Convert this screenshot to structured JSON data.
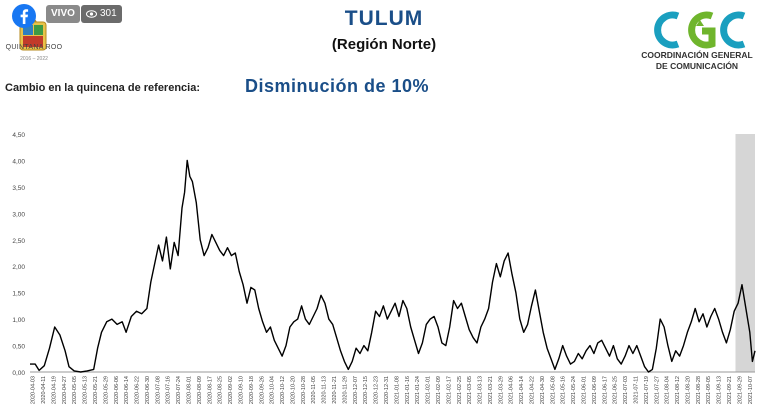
{
  "stream": {
    "live_label": "VIVO",
    "viewer_count": "301"
  },
  "header": {
    "logo_text": "QUINTANA ROO",
    "logo_years": "2016 – 2022",
    "title": "TULUM",
    "subtitle": "(Región Norte)",
    "org_line1": "COORDINACIÓN GENERAL",
    "org_line2": "DE COMUNICACIÓN"
  },
  "summary": {
    "label": "Cambio en la quincena de referencia:",
    "value": "Disminución de 10%"
  },
  "colors": {
    "title_blue": "#1a4e88",
    "line": "#000000",
    "highlight_band": "#d6d6d6",
    "cgc_green": "#6fb52c",
    "cgc_teal": "#1a9fbf",
    "facebook_blue": "#1877f2"
  },
  "chart_data": {
    "type": "line",
    "title": "",
    "xlabel": "",
    "ylabel": "",
    "ylim": [
      0,
      4.5
    ],
    "yticks": [
      "0,00",
      "0,50",
      "1,00",
      "1,50",
      "2,00",
      "2,50",
      "3,00",
      "3,50",
      "4,00",
      "4,50"
    ],
    "ytick_values": [
      0,
      0.5,
      1,
      1.5,
      2,
      2.5,
      3,
      3.5,
      4,
      4.5
    ],
    "grid": false,
    "x_start": "2020-04-01",
    "x_end": "2021-10-11",
    "highlight_range": [
      "2021-09-26",
      "2021-10-11"
    ],
    "xtick_labels": [
      "2020-04-03",
      "2020-04-11",
      "2020-04-19",
      "2020-04-27",
      "2020-05-05",
      "2020-05-13",
      "2020-05-21",
      "2020-05-29",
      "2020-06-06",
      "2020-06-14",
      "2020-06-22",
      "2020-06-30",
      "2020-07-08",
      "2020-07-16",
      "2020-07-24",
      "2020-08-01",
      "2020-08-09",
      "2020-08-17",
      "2020-08-25",
      "2020-09-02",
      "2020-09-10",
      "2020-09-18",
      "2020-09-26",
      "2020-10-04",
      "2020-10-12",
      "2020-10-20",
      "2020-10-28",
      "2020-11-05",
      "2020-11-13",
      "2020-11-21",
      "2020-11-29",
      "2020-12-07",
      "2020-12-15",
      "2020-12-23",
      "2020-12-31",
      "2021-01-08",
      "2021-01-16",
      "2021-01-24",
      "2021-02-01",
      "2021-02-09",
      "2021-02-17",
      "2021-02-25",
      "2021-03-05",
      "2021-03-13",
      "2021-03-21",
      "2021-03-29",
      "2021-04-06",
      "2021-04-14",
      "2021-04-22",
      "2021-04-30",
      "2021-05-08",
      "2021-05-16",
      "2021-05-24",
      "2021-06-01",
      "2021-06-09",
      "2021-06-17",
      "2021-06-25",
      "2021-07-03",
      "2021-07-11",
      "2021-07-19",
      "2021-07-27",
      "2021-08-04",
      "2021-08-12",
      "2021-08-20",
      "2021-08-28",
      "2021-09-05",
      "2021-09-13",
      "2021-09-21",
      "2021-09-29",
      "2021-10-07"
    ],
    "series": [
      {
        "values": [
          [
            "2020-04-01",
            0.15
          ],
          [
            "2020-04-05",
            0.15
          ],
          [
            "2020-04-08",
            0.03
          ],
          [
            "2020-04-12",
            0.12
          ],
          [
            "2020-04-16",
            0.45
          ],
          [
            "2020-04-20",
            0.85
          ],
          [
            "2020-04-24",
            0.7
          ],
          [
            "2020-04-28",
            0.4
          ],
          [
            "2020-05-01",
            0.1
          ],
          [
            "2020-05-05",
            0.02
          ],
          [
            "2020-05-10",
            0.0
          ],
          [
            "2020-05-15",
            0.02
          ],
          [
            "2020-05-20",
            0.05
          ],
          [
            "2020-05-23",
            0.45
          ],
          [
            "2020-05-26",
            0.75
          ],
          [
            "2020-05-30",
            0.95
          ],
          [
            "2020-06-03",
            1.0
          ],
          [
            "2020-06-07",
            0.9
          ],
          [
            "2020-06-11",
            0.95
          ],
          [
            "2020-06-14",
            0.75
          ],
          [
            "2020-06-18",
            1.05
          ],
          [
            "2020-06-22",
            1.15
          ],
          [
            "2020-06-26",
            1.1
          ],
          [
            "2020-06-30",
            1.2
          ],
          [
            "2020-07-03",
            1.7
          ],
          [
            "2020-07-06",
            2.05
          ],
          [
            "2020-07-09",
            2.4
          ],
          [
            "2020-07-12",
            2.1
          ],
          [
            "2020-07-15",
            2.55
          ],
          [
            "2020-07-18",
            1.95
          ],
          [
            "2020-07-21",
            2.45
          ],
          [
            "2020-07-24",
            2.2
          ],
          [
            "2020-07-27",
            3.1
          ],
          [
            "2020-07-29",
            3.4
          ],
          [
            "2020-07-31",
            4.0
          ],
          [
            "2020-08-02",
            3.7
          ],
          [
            "2020-08-04",
            3.6
          ],
          [
            "2020-08-07",
            3.2
          ],
          [
            "2020-08-10",
            2.5
          ],
          [
            "2020-08-13",
            2.2
          ],
          [
            "2020-08-16",
            2.35
          ],
          [
            "2020-08-19",
            2.6
          ],
          [
            "2020-08-22",
            2.45
          ],
          [
            "2020-08-25",
            2.3
          ],
          [
            "2020-08-28",
            2.2
          ],
          [
            "2020-08-31",
            2.35
          ],
          [
            "2020-09-03",
            2.2
          ],
          [
            "2020-09-06",
            2.25
          ],
          [
            "2020-09-09",
            1.9
          ],
          [
            "2020-09-12",
            1.65
          ],
          [
            "2020-09-15",
            1.3
          ],
          [
            "2020-09-18",
            1.6
          ],
          [
            "2020-09-21",
            1.55
          ],
          [
            "2020-09-24",
            1.2
          ],
          [
            "2020-09-27",
            0.95
          ],
          [
            "2020-09-30",
            0.75
          ],
          [
            "2020-10-03",
            0.85
          ],
          [
            "2020-10-06",
            0.6
          ],
          [
            "2020-10-09",
            0.45
          ],
          [
            "2020-10-12",
            0.3
          ],
          [
            "2020-10-15",
            0.5
          ],
          [
            "2020-10-18",
            0.85
          ],
          [
            "2020-10-21",
            0.95
          ],
          [
            "2020-10-24",
            1.0
          ],
          [
            "2020-10-27",
            1.25
          ],
          [
            "2020-10-30",
            1.0
          ],
          [
            "2020-11-02",
            0.9
          ],
          [
            "2020-11-05",
            1.05
          ],
          [
            "2020-11-08",
            1.2
          ],
          [
            "2020-11-11",
            1.45
          ],
          [
            "2020-11-14",
            1.3
          ],
          [
            "2020-11-17",
            1.0
          ],
          [
            "2020-11-20",
            0.9
          ],
          [
            "2020-11-23",
            0.65
          ],
          [
            "2020-11-26",
            0.4
          ],
          [
            "2020-11-29",
            0.2
          ],
          [
            "2020-12-02",
            0.05
          ],
          [
            "2020-12-05",
            0.2
          ],
          [
            "2020-12-08",
            0.45
          ],
          [
            "2020-12-11",
            0.35
          ],
          [
            "2020-12-14",
            0.5
          ],
          [
            "2020-12-17",
            0.4
          ],
          [
            "2020-12-20",
            0.75
          ],
          [
            "2020-12-23",
            1.15
          ],
          [
            "2020-12-26",
            1.05
          ],
          [
            "2020-12-29",
            1.25
          ],
          [
            "2021-01-01",
            1.0
          ],
          [
            "2021-01-04",
            1.15
          ],
          [
            "2021-01-07",
            1.3
          ],
          [
            "2021-01-10",
            1.05
          ],
          [
            "2021-01-13",
            1.35
          ],
          [
            "2021-01-16",
            1.2
          ],
          [
            "2021-01-19",
            0.85
          ],
          [
            "2021-01-22",
            0.6
          ],
          [
            "2021-01-25",
            0.35
          ],
          [
            "2021-01-28",
            0.55
          ],
          [
            "2021-01-31",
            0.9
          ],
          [
            "2021-02-03",
            1.0
          ],
          [
            "2021-02-06",
            1.05
          ],
          [
            "2021-02-09",
            0.85
          ],
          [
            "2021-02-12",
            0.55
          ],
          [
            "2021-02-15",
            0.5
          ],
          [
            "2021-02-18",
            0.85
          ],
          [
            "2021-02-21",
            1.35
          ],
          [
            "2021-02-24",
            1.2
          ],
          [
            "2021-02-27",
            1.3
          ],
          [
            "2021-03-02",
            1.05
          ],
          [
            "2021-03-05",
            0.8
          ],
          [
            "2021-03-08",
            0.65
          ],
          [
            "2021-03-11",
            0.55
          ],
          [
            "2021-03-14",
            0.85
          ],
          [
            "2021-03-17",
            1.0
          ],
          [
            "2021-03-20",
            1.2
          ],
          [
            "2021-03-23",
            1.7
          ],
          [
            "2021-03-26",
            2.05
          ],
          [
            "2021-03-29",
            1.8
          ],
          [
            "2021-04-01",
            2.1
          ],
          [
            "2021-04-04",
            2.25
          ],
          [
            "2021-04-07",
            1.85
          ],
          [
            "2021-04-10",
            1.5
          ],
          [
            "2021-04-13",
            1.0
          ],
          [
            "2021-04-16",
            0.75
          ],
          [
            "2021-04-19",
            0.9
          ],
          [
            "2021-04-22",
            1.25
          ],
          [
            "2021-04-25",
            1.55
          ],
          [
            "2021-04-28",
            1.15
          ],
          [
            "2021-05-01",
            0.75
          ],
          [
            "2021-05-04",
            0.45
          ],
          [
            "2021-05-07",
            0.25
          ],
          [
            "2021-05-10",
            0.05
          ],
          [
            "2021-05-13",
            0.25
          ],
          [
            "2021-05-16",
            0.5
          ],
          [
            "2021-05-19",
            0.3
          ],
          [
            "2021-05-22",
            0.15
          ],
          [
            "2021-05-25",
            0.2
          ],
          [
            "2021-05-28",
            0.35
          ],
          [
            "2021-05-31",
            0.25
          ],
          [
            "2021-06-03",
            0.4
          ],
          [
            "2021-06-06",
            0.5
          ],
          [
            "2021-06-09",
            0.35
          ],
          [
            "2021-06-12",
            0.55
          ],
          [
            "2021-06-15",
            0.6
          ],
          [
            "2021-06-18",
            0.45
          ],
          [
            "2021-06-21",
            0.3
          ],
          [
            "2021-06-24",
            0.5
          ],
          [
            "2021-06-27",
            0.25
          ],
          [
            "2021-06-30",
            0.15
          ],
          [
            "2021-07-03",
            0.3
          ],
          [
            "2021-07-06",
            0.5
          ],
          [
            "2021-07-09",
            0.35
          ],
          [
            "2021-07-12",
            0.5
          ],
          [
            "2021-07-15",
            0.3
          ],
          [
            "2021-07-18",
            0.1
          ],
          [
            "2021-07-21",
            0.0
          ],
          [
            "2021-07-24",
            0.05
          ],
          [
            "2021-07-27",
            0.45
          ],
          [
            "2021-07-30",
            1.0
          ],
          [
            "2021-08-02",
            0.85
          ],
          [
            "2021-08-05",
            0.5
          ],
          [
            "2021-08-08",
            0.2
          ],
          [
            "2021-08-11",
            0.4
          ],
          [
            "2021-08-14",
            0.3
          ],
          [
            "2021-08-17",
            0.5
          ],
          [
            "2021-08-20",
            0.75
          ],
          [
            "2021-08-23",
            0.95
          ],
          [
            "2021-08-26",
            1.2
          ],
          [
            "2021-08-29",
            0.95
          ],
          [
            "2021-09-01",
            1.1
          ],
          [
            "2021-09-04",
            0.85
          ],
          [
            "2021-09-07",
            1.05
          ],
          [
            "2021-09-10",
            1.2
          ],
          [
            "2021-09-13",
            1.0
          ],
          [
            "2021-09-16",
            0.75
          ],
          [
            "2021-09-19",
            0.55
          ],
          [
            "2021-09-22",
            0.8
          ],
          [
            "2021-09-25",
            1.15
          ],
          [
            "2021-09-28",
            1.3
          ],
          [
            "2021-10-01",
            1.65
          ],
          [
            "2021-10-03",
            1.35
          ],
          [
            "2021-10-05",
            1.05
          ],
          [
            "2021-10-07",
            0.75
          ],
          [
            "2021-10-09",
            0.2
          ],
          [
            "2021-10-11",
            0.4
          ]
        ]
      }
    ]
  }
}
